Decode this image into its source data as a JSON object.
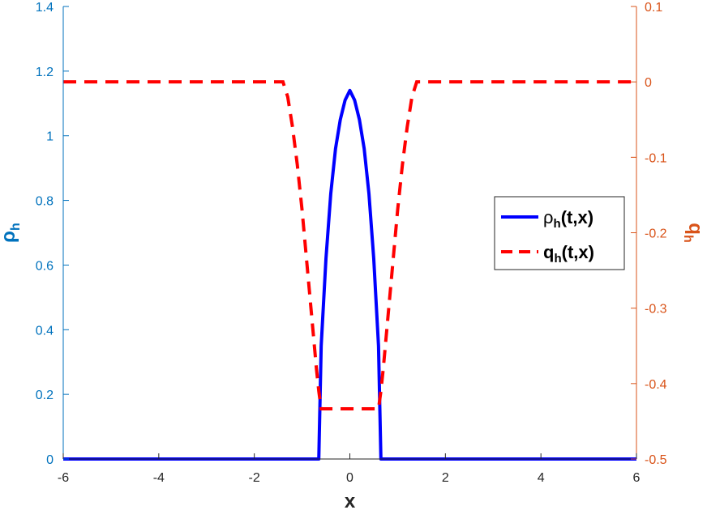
{
  "chart_data": {
    "type": "line",
    "xlabel": "x",
    "xlim": [
      -6,
      6
    ],
    "xticks": [
      -6,
      -4,
      -2,
      0,
      2,
      4,
      6
    ],
    "left_axis": {
      "label_main": "ρ",
      "label_sub": "h",
      "ylim": [
        0,
        1.4
      ],
      "ticks": [
        0,
        0.2,
        0.4,
        0.6,
        0.8,
        1,
        1.2,
        1.4
      ],
      "color": "#0072BD"
    },
    "right_axis": {
      "label_main": "q",
      "label_sub": "h",
      "ylim": [
        -0.5,
        0.1
      ],
      "ticks": [
        -0.5,
        -0.4,
        -0.3,
        -0.2,
        -0.1,
        0,
        0.1
      ],
      "color": "#D95319"
    },
    "series": [
      {
        "name_main": "ρ",
        "name_sub": "h",
        "name_tail": "(t,x)",
        "axis": "left",
        "color": "#0000FF",
        "style": "solid",
        "x": [
          -6,
          -0.65,
          -0.6,
          -0.5,
          -0.4,
          -0.3,
          -0.2,
          -0.1,
          0,
          0.1,
          0.2,
          0.3,
          0.4,
          0.5,
          0.6,
          0.65,
          6
        ],
        "y": [
          0,
          0,
          0.35,
          0.62,
          0.82,
          0.96,
          1.05,
          1.11,
          1.14,
          1.11,
          1.05,
          0.96,
          0.82,
          0.62,
          0.35,
          0,
          0
        ]
      },
      {
        "name_main": "q",
        "name_sub": "h",
        "name_tail": "(t,x)",
        "axis": "right",
        "color": "#FF0000",
        "style": "dashed",
        "x": [
          -6,
          -1.4,
          -1.3,
          -1.2,
          -1.1,
          -1.0,
          -0.9,
          -0.8,
          -0.7,
          -0.65,
          -0.6,
          0.6,
          0.65,
          0.7,
          0.8,
          0.9,
          1.0,
          1.1,
          1.2,
          1.3,
          1.4,
          6
        ],
        "y": [
          0,
          0,
          -0.02,
          -0.06,
          -0.11,
          -0.17,
          -0.24,
          -0.31,
          -0.38,
          -0.41,
          -0.4335,
          -0.4335,
          -0.41,
          -0.38,
          -0.31,
          -0.24,
          -0.17,
          -0.11,
          -0.06,
          -0.02,
          0,
          0
        ]
      }
    ],
    "legend_position": "right"
  }
}
